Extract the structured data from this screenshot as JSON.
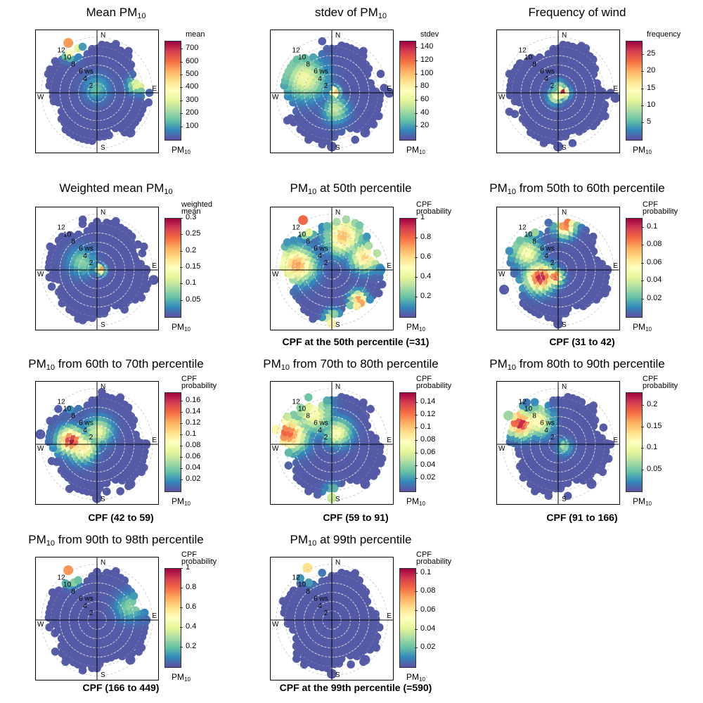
{
  "chart_data": [
    {
      "type": "heatmap",
      "subtype": "polar-plot",
      "title_main": "Mean PM",
      "title_sub": "10",
      "title_rest": "",
      "legend_title": [
        "mean"
      ],
      "legend_unit": "PM",
      "legend_unit_sub": "10",
      "range": [
        0,
        760
      ],
      "ticks": [
        100,
        200,
        300,
        400,
        500,
        600,
        700
      ],
      "caption": "",
      "hotspots": [
        {
          "theta_deg": 330,
          "ws": 11.5,
          "level": 0.95,
          "spread": 1.3
        },
        {
          "theta_deg": 80,
          "ws": 9,
          "level": 0.45,
          "spread": 1.2
        },
        {
          "theta_deg": 0,
          "ws": 1,
          "level": 0.2,
          "spread": 2
        }
      ],
      "radial_labels": [
        "12",
        "10",
        "8",
        "6 ws",
        "4",
        "2"
      ],
      "compass": [
        "N",
        "E",
        "S",
        "W"
      ]
    },
    {
      "type": "heatmap",
      "subtype": "polar-plot",
      "title_main": "stdev of PM",
      "title_sub": "10",
      "title_rest": "",
      "legend_title": [
        "stdev"
      ],
      "legend_unit": "PM",
      "legend_unit_sub": "10",
      "range": [
        0,
        150
      ],
      "ticks": [
        20,
        40,
        60,
        80,
        100,
        120,
        140
      ],
      "caption": "",
      "hotspots": [
        {
          "theta_deg": 90,
          "ws": 0.6,
          "level": 1.0,
          "spread": 0.9
        },
        {
          "theta_deg": 300,
          "ws": 7,
          "level": 0.45,
          "spread": 3
        },
        {
          "theta_deg": 170,
          "ws": 4,
          "level": 0.35,
          "spread": 1.8
        }
      ],
      "radial_labels": [
        "12",
        "10",
        "8",
        "6 ws",
        "4",
        "2"
      ],
      "compass": [
        "N",
        "E",
        "S",
        "W"
      ]
    },
    {
      "type": "heatmap",
      "subtype": "polar-plot",
      "title_main": "Frequency of wind",
      "title_sub": "",
      "title_rest": "",
      "legend_title": [
        "frequency"
      ],
      "legend_unit": "PM",
      "legend_unit_sub": "10",
      "range": [
        0,
        29
      ],
      "ticks": [
        5,
        10,
        15,
        20,
        25
      ],
      "caption": "",
      "hotspots": [
        {
          "theta_deg": 95,
          "ws": 1.3,
          "level": 1.0,
          "spread": 0.9
        },
        {
          "theta_deg": 220,
          "ws": 1,
          "level": 0.55,
          "spread": 1.2
        },
        {
          "theta_deg": 10,
          "ws": 1.5,
          "level": 0.4,
          "spread": 1
        }
      ],
      "radial_labels": [
        "12",
        "10",
        "8",
        "6 ws",
        "4",
        "2"
      ],
      "compass": [
        "N",
        "E",
        "S",
        "W"
      ]
    },
    {
      "type": "heatmap",
      "subtype": "polar-plot",
      "title_main": "Weighted mean PM",
      "title_sub": "10",
      "title_rest": "",
      "legend_title": [
        "weighted",
        "mean"
      ],
      "legend_unit": "PM",
      "legend_unit_sub": "10",
      "range": [
        0,
        0.3
      ],
      "ticks": [
        0.05,
        0.1,
        0.15,
        0.2,
        0.25,
        0.3
      ],
      "caption": "",
      "tick_labels": [
        "0.05",
        "0.1",
        "0.15",
        "0.2",
        "0.25",
        "0.3"
      ],
      "hotspots": [
        {
          "theta_deg": 100,
          "ws": 0.8,
          "level": 1.0,
          "spread": 0.8
        },
        {
          "theta_deg": 300,
          "ws": 4,
          "level": 0.25,
          "spread": 2
        }
      ],
      "radial_labels": [
        "12",
        "10",
        "8",
        "6 ws",
        "4",
        "2"
      ],
      "compass": [
        "N",
        "E",
        "S",
        "W"
      ]
    },
    {
      "type": "heatmap",
      "subtype": "polar-plot",
      "title_main": "PM",
      "title_sub": "10",
      "title_rest": " at 50th percentile",
      "legend_title": [
        "CPF",
        "probability"
      ],
      "legend_unit": "PM",
      "legend_unit_sub": "10",
      "range": [
        0,
        1
      ],
      "ticks": [
        0.2,
        0.4,
        0.6,
        0.8,
        1
      ],
      "caption": "CPF at the 50th percentile (=31)",
      "hotspots": [
        {
          "theta_deg": 330,
          "ws": 11.5,
          "level": 1.0,
          "spread": 1.5
        },
        {
          "theta_deg": 280,
          "ws": 8,
          "level": 0.75,
          "spread": 2.5
        },
        {
          "theta_deg": 20,
          "ws": 8,
          "level": 0.7,
          "spread": 2.5
        },
        {
          "theta_deg": 70,
          "ws": 8,
          "level": 0.65,
          "spread": 2
        },
        {
          "theta_deg": 140,
          "ws": 9,
          "level": 0.8,
          "spread": 1.2
        },
        {
          "theta_deg": 180,
          "ws": 11,
          "level": 0.6,
          "spread": 1.2
        }
      ],
      "radial_labels": [
        "12",
        "10",
        "8",
        "6 ws",
        "4",
        "2"
      ],
      "compass": [
        "N",
        "E",
        "S",
        "W"
      ]
    },
    {
      "type": "heatmap",
      "subtype": "polar-plot",
      "title_main": "PM",
      "title_sub": "10",
      "title_rest": "  from 50th to 60th percentile",
      "legend_title": [
        "CPF",
        "probability"
      ],
      "legend_unit": "PM",
      "legend_unit_sub": "10",
      "range": [
        0,
        0.11
      ],
      "ticks": [
        0.02,
        0.04,
        0.06,
        0.08,
        0.1
      ],
      "caption": "CPF (31 to 42)",
      "hotspots": [
        {
          "theta_deg": 250,
          "ws": 4.5,
          "level": 1.0,
          "spread": 2
        },
        {
          "theta_deg": 215,
          "ws": 2,
          "level": 0.9,
          "spread": 1.3
        },
        {
          "theta_deg": 10,
          "ws": 10,
          "level": 0.85,
          "spread": 1.5
        },
        {
          "theta_deg": 330,
          "ws": 11,
          "level": 0.6,
          "spread": 1.2
        },
        {
          "theta_deg": 300,
          "ws": 8,
          "level": 0.5,
          "spread": 2
        }
      ],
      "radial_labels": [
        "12",
        "10",
        "8",
        "6 ws",
        "4",
        "2"
      ],
      "compass": [
        "N",
        "E",
        "S",
        "W"
      ]
    },
    {
      "type": "heatmap",
      "subtype": "polar-plot",
      "title_main": "PM",
      "title_sub": "10",
      "title_rest": " from 60th to 70th percentile",
      "legend_title": [
        "CPF",
        "probability"
      ],
      "legend_unit": "PM",
      "legend_unit_sub": "10",
      "range": [
        0,
        0.175
      ],
      "ticks": [
        0.02,
        0.04,
        0.06,
        0.08,
        0.1,
        0.12,
        0.14,
        0.16
      ],
      "caption": "CPF (42 to 59)",
      "hotspots": [
        {
          "theta_deg": 280,
          "ws": 6,
          "level": 1.0,
          "spread": 1.8
        },
        {
          "theta_deg": 260,
          "ws": 3.5,
          "level": 0.6,
          "spread": 2
        },
        {
          "theta_deg": 10,
          "ws": 3,
          "level": 0.45,
          "spread": 2
        },
        {
          "theta_deg": 330,
          "ws": 11,
          "level": 0.4,
          "spread": 1.2
        }
      ],
      "radial_labels": [
        "12",
        "10",
        "8",
        "6 ws",
        "4",
        "2"
      ],
      "compass": [
        "N",
        "E",
        "S",
        "W"
      ]
    },
    {
      "type": "heatmap",
      "subtype": "polar-plot",
      "title_main": "PM",
      "title_sub": "10",
      "title_rest": " from 70th to 80th percentile",
      "legend_title": [
        "CPF",
        "probability"
      ],
      "legend_unit": "PM",
      "legend_unit_sub": "10",
      "range": [
        0,
        0.155
      ],
      "ticks": [
        0.02,
        0.04,
        0.06,
        0.08,
        0.1,
        0.12,
        0.14
      ],
      "caption": "CPF (59 to 91)",
      "hotspots": [
        {
          "theta_deg": 285,
          "ws": 10,
          "level": 0.85,
          "spread": 2.5
        },
        {
          "theta_deg": 330,
          "ws": 8,
          "level": 0.5,
          "spread": 2.5
        },
        {
          "theta_deg": 30,
          "ws": 3,
          "level": 0.5,
          "spread": 2
        },
        {
          "theta_deg": 180,
          "ws": 11,
          "level": 0.4,
          "spread": 1.2
        }
      ],
      "radial_labels": [
        "12",
        "10",
        "8",
        "6 ws",
        "4",
        "2"
      ],
      "compass": [
        "N",
        "E",
        "S",
        "W"
      ]
    },
    {
      "type": "heatmap",
      "subtype": "polar-plot",
      "title_main": "PM",
      "title_sub": "10",
      "title_rest": " from 80th to 90th percentile",
      "legend_title": [
        "CPF",
        "probability"
      ],
      "legend_unit": "PM",
      "legend_unit_sub": "10",
      "range": [
        0,
        0.23
      ],
      "ticks": [
        0.05,
        0.1,
        0.15,
        0.2
      ],
      "caption": "CPF (91 to 166)",
      "hotspots": [
        {
          "theta_deg": 300,
          "ws": 9.5,
          "level": 1.0,
          "spread": 1.8
        },
        {
          "theta_deg": 320,
          "ws": 7,
          "level": 0.55,
          "spread": 2
        },
        {
          "theta_deg": 120,
          "ws": 1.5,
          "level": 0.3,
          "spread": 1.2
        }
      ],
      "radial_labels": [
        "12",
        "10",
        "8",
        "6 ws",
        "4",
        "2"
      ],
      "compass": [
        "N",
        "E",
        "S",
        "W"
      ]
    },
    {
      "type": "heatmap",
      "subtype": "polar-plot",
      "title_main": "PM",
      "title_sub": "10",
      "title_rest": " from 90th to 98th percentile",
      "legend_title": [
        "CPF",
        "probability"
      ],
      "legend_unit": "PM",
      "legend_unit_sub": "10",
      "range": [
        0,
        1
      ],
      "ticks": [
        0.2,
        0.4,
        0.6,
        0.8,
        1
      ],
      "caption": "CPF (166 to 449)",
      "hotspots": [
        {
          "theta_deg": 330,
          "ws": 11.5,
          "level": 1.0,
          "spread": 1.2
        },
        {
          "theta_deg": 70,
          "ws": 8,
          "level": 0.25,
          "spread": 2
        }
      ],
      "radial_labels": [
        "12",
        "10",
        "8",
        "6 ws",
        "4",
        "2"
      ],
      "compass": [
        "N",
        "E",
        "S",
        "W"
      ]
    },
    {
      "type": "heatmap",
      "subtype": "polar-plot",
      "title_main": "PM",
      "title_sub": "10",
      "title_rest": " at 99th percentile",
      "legend_title": [
        "CPF",
        "probability"
      ],
      "legend_unit": "PM",
      "legend_unit_sub": "10",
      "range": [
        0,
        0.105
      ],
      "ticks": [
        0.02,
        0.04,
        0.06,
        0.08,
        0.1
      ],
      "caption": "CPF at the 99th percentile (=590)",
      "hotspots": [
        {
          "theta_deg": 335,
          "ws": 11.5,
          "level": 0.8,
          "spread": 1.2
        }
      ],
      "radial_labels": [
        "12",
        "10",
        "8",
        "6 ws",
        "4",
        "2"
      ],
      "compass": [
        "N",
        "E",
        "S",
        "W"
      ]
    }
  ],
  "colors": {
    "scale": [
      "#5E4FA2",
      "#3288BD",
      "#66C2A5",
      "#ABDDA4",
      "#E6F598",
      "#FFFFBF",
      "#FEE08B",
      "#FDAE61",
      "#F46D43",
      "#D53E4F",
      "#9E0142"
    ],
    "grid": "#9a9a9a",
    "axis": "#000000"
  }
}
